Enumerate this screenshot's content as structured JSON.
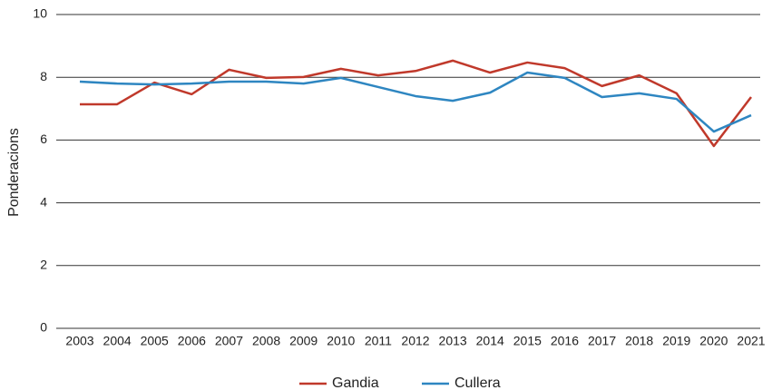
{
  "chart_data": {
    "type": "line",
    "y_label": "Ponderacions",
    "categories": [
      "2003",
      "2004",
      "2005",
      "2006",
      "2007",
      "2008",
      "2009",
      "2010",
      "2011",
      "2012",
      "2013",
      "2014",
      "2015",
      "2016",
      "2017",
      "2018",
      "2019",
      "2020",
      "2021"
    ],
    "series": [
      {
        "name": "Gandia",
        "color": "#c0392b",
        "values": [
          7.14,
          7.14,
          7.83,
          7.46,
          8.24,
          7.98,
          8.01,
          8.27,
          8.06,
          8.2,
          8.53,
          8.15,
          8.47,
          8.29,
          7.72,
          8.06,
          7.49,
          5.81,
          7.37
        ]
      },
      {
        "name": "Cullera",
        "color": "#2e86c1",
        "values": [
          7.86,
          7.8,
          7.77,
          7.8,
          7.86,
          7.86,
          7.8,
          7.98,
          7.69,
          7.4,
          7.25,
          7.51,
          8.15,
          7.98,
          7.37,
          7.49,
          7.31,
          6.27,
          6.79
        ]
      }
    ],
    "ylim": [
      0,
      10
    ],
    "yticks": [
      0,
      2,
      4,
      6,
      8,
      10
    ],
    "grid": true,
    "legend": "bottom"
  }
}
